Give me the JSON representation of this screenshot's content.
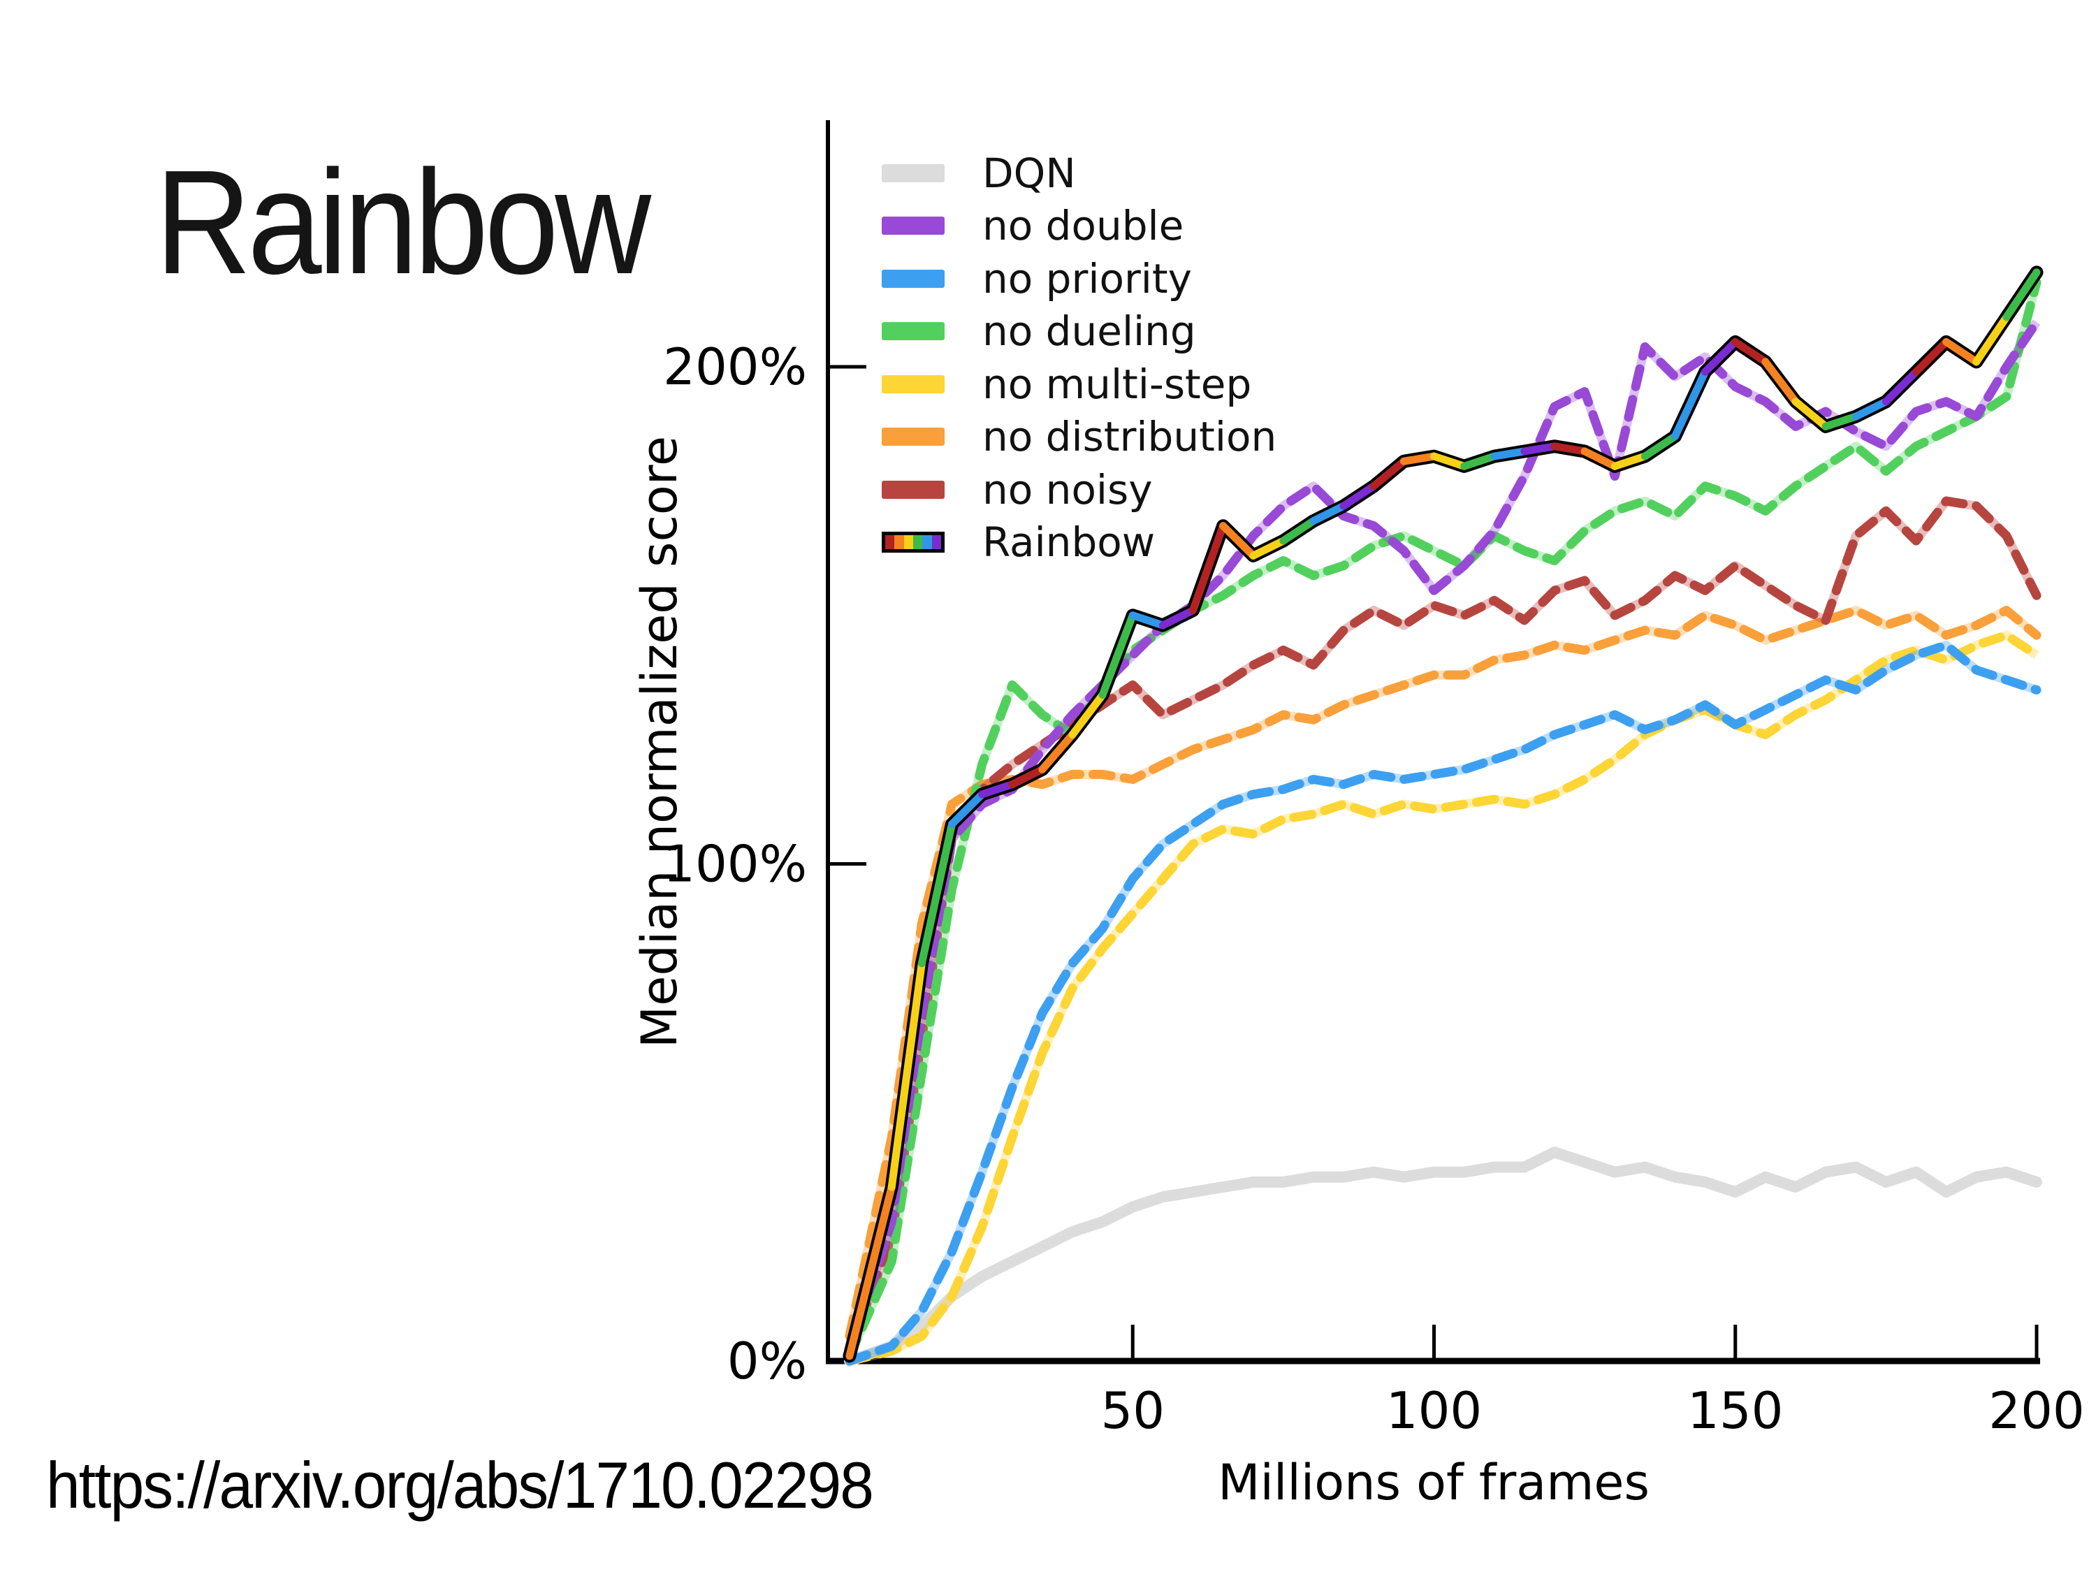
{
  "slide": {
    "title": "Rainbow",
    "source_url": "https://arxiv.org/abs/1710.02298",
    "background_color": "#ffffff"
  },
  "chart_data": {
    "type": "line",
    "title": "",
    "xlabel": "Millions of frames",
    "ylabel": "Median normalized score",
    "xlim": [
      0,
      200
    ],
    "ylim": [
      0,
      249
    ],
    "grid": false,
    "legend_position": "upper left",
    "x_ticks": [
      50,
      100,
      150,
      200
    ],
    "y_ticks": [
      {
        "label": "0%",
        "value": 0
      },
      {
        "label": "100%",
        "value": 100
      },
      {
        "label": "200%",
        "value": 200
      }
    ],
    "x": [
      3,
      10,
      15,
      20,
      25,
      30,
      35,
      40,
      45,
      50,
      55,
      60,
      65,
      70,
      75,
      80,
      85,
      90,
      95,
      100,
      105,
      110,
      115,
      120,
      125,
      130,
      135,
      140,
      145,
      150,
      155,
      160,
      165,
      170,
      175,
      180,
      185,
      190,
      195,
      200
    ],
    "series": [
      {
        "name": "DQN",
        "color": "#dcdcdc",
        "style": "solid",
        "values": [
          0,
          3,
          7,
          13,
          17,
          20,
          23,
          26,
          28,
          31,
          33,
          34,
          35,
          36,
          36,
          37,
          37,
          38,
          37,
          38,
          38,
          39,
          39,
          42,
          40,
          38,
          39,
          37,
          36,
          34,
          37,
          35,
          38,
          39,
          36,
          38,
          34,
          37,
          38,
          36
        ]
      },
      {
        "name": "no double",
        "color": "#9849d6",
        "style": "dashed",
        "values": [
          2,
          28,
          70,
          105,
          112,
          115,
          123,
          130,
          136,
          142,
          148,
          152,
          158,
          166,
          172,
          176,
          170,
          168,
          163,
          155,
          160,
          167,
          178,
          192,
          195,
          178,
          204,
          198,
          202,
          196,
          193,
          188,
          191,
          187,
          184,
          191,
          193,
          190,
          200,
          209
        ]
      },
      {
        "name": "no priority",
        "color": "#3d9ff0",
        "style": "dashed",
        "values": [
          0,
          3,
          10,
          22,
          38,
          55,
          70,
          80,
          87,
          97,
          104,
          108,
          112,
          114,
          115,
          117,
          116,
          118,
          117,
          118,
          119,
          121,
          123,
          126,
          128,
          130,
          127,
          129,
          132,
          128,
          131,
          134,
          137,
          135,
          139,
          142,
          144,
          139,
          137,
          135
        ]
      },
      {
        "name": "no dueling",
        "color": "#52d05e",
        "style": "dashed",
        "values": [
          1,
          20,
          58,
          95,
          120,
          136,
          130,
          126,
          136,
          143,
          147,
          151,
          154,
          158,
          161,
          158,
          160,
          164,
          166,
          163,
          160,
          166,
          163,
          161,
          167,
          171,
          173,
          170,
          176,
          174,
          171,
          176,
          180,
          184,
          179,
          184,
          187,
          190,
          194,
          217
        ]
      },
      {
        "name": "no multi-step",
        "color": "#fdd535",
        "style": "dashed",
        "values": [
          0,
          2,
          5,
          13,
          27,
          45,
          62,
          75,
          83,
          90,
          97,
          104,
          107,
          106,
          109,
          110,
          112,
          110,
          112,
          111,
          112,
          113,
          112,
          114,
          117,
          121,
          126,
          129,
          131,
          128,
          126,
          130,
          133,
          137,
          141,
          143,
          141,
          144,
          146,
          142
        ]
      },
      {
        "name": "no distribution",
        "color": "#f9a03a",
        "style": "dashed",
        "values": [
          5,
          45,
          88,
          112,
          116,
          117,
          116,
          118,
          118,
          117,
          120,
          123,
          125,
          127,
          130,
          129,
          132,
          134,
          136,
          138,
          138,
          141,
          142,
          144,
          143,
          145,
          147,
          146,
          150,
          148,
          145,
          147,
          149,
          151,
          148,
          150,
          146,
          148,
          151,
          146
        ]
      },
      {
        "name": "no noisy",
        "color": "#b64540",
        "style": "dashed",
        "values": [
          2,
          25,
          65,
          105,
          115,
          120,
          124,
          128,
          132,
          136,
          130,
          133,
          136,
          140,
          143,
          140,
          147,
          151,
          148,
          152,
          150,
          153,
          149,
          155,
          157,
          150,
          153,
          158,
          155,
          160,
          156,
          152,
          149,
          166,
          171,
          165,
          173,
          172,
          166,
          154
        ]
      },
      {
        "name": "Rainbow",
        "color": "rainbow",
        "style": "multicolor",
        "palette": [
          "#b22222",
          "#f58220",
          "#f7d117",
          "#3dbb4a",
          "#2f96e8",
          "#7a2bd1"
        ],
        "values": [
          1,
          35,
          80,
          108,
          114,
          116,
          119,
          126,
          134,
          150,
          148,
          151,
          168,
          162,
          165,
          169,
          172,
          176,
          181,
          182,
          180,
          182,
          183,
          184,
          183,
          180,
          182,
          186,
          199,
          205,
          201,
          193,
          188,
          190,
          193,
          199,
          205,
          201,
          210,
          219
        ]
      }
    ]
  }
}
